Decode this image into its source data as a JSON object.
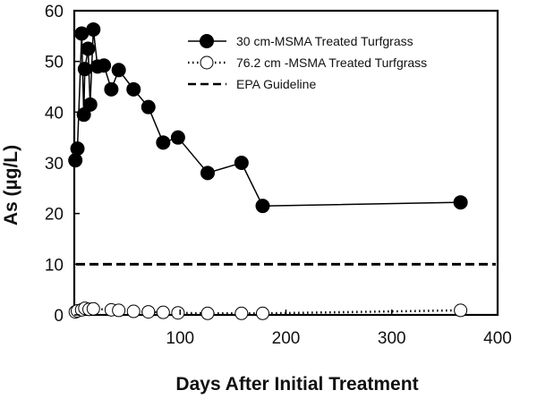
{
  "chart_data": {
    "type": "line",
    "xlabel": "Days After Initial Treatment",
    "ylabel": "As (µg/L)",
    "xlim": [
      0,
      400
    ],
    "ylim": [
      0,
      60
    ],
    "x_ticks": [
      100,
      200,
      300,
      400
    ],
    "y_ticks": [
      0,
      10,
      20,
      30,
      40,
      50,
      60
    ],
    "grid": false,
    "legend_position": "top-right",
    "series": [
      {
        "name": "30 cm-MSMA Treated Turfgrass",
        "marker": "filled-circle",
        "line": "solid",
        "color": "#000000",
        "points": [
          [
            1,
            30.5
          ],
          [
            3,
            32.8
          ],
          [
            7,
            55.5
          ],
          [
            9,
            39.5
          ],
          [
            10,
            48.5
          ],
          [
            13,
            52.5
          ],
          [
            15,
            41.5
          ],
          [
            18,
            56.3
          ],
          [
            22,
            49.0
          ],
          [
            28,
            49.2
          ],
          [
            35,
            44.5
          ],
          [
            42,
            48.3
          ],
          [
            56,
            44.5
          ],
          [
            70,
            41.0
          ],
          [
            84,
            34.0
          ],
          [
            98,
            35.0
          ],
          [
            126,
            28.0
          ],
          [
            158,
            30.0
          ],
          [
            178,
            21.5
          ],
          [
            365,
            22.2
          ]
        ]
      },
      {
        "name": "76.2 cm -MSMA Treated Turfgrass",
        "marker": "open-circle",
        "line": "dotted",
        "color": "#000000",
        "points": [
          [
            1,
            0.6
          ],
          [
            3,
            0.8
          ],
          [
            7,
            1.0
          ],
          [
            10,
            1.3
          ],
          [
            14,
            1.1
          ],
          [
            18,
            1.2
          ],
          [
            35,
            1.0
          ],
          [
            42,
            0.9
          ],
          [
            56,
            0.7
          ],
          [
            70,
            0.6
          ],
          [
            84,
            0.5
          ],
          [
            98,
            0.4
          ],
          [
            126,
            0.3
          ],
          [
            158,
            0.3
          ],
          [
            178,
            0.3
          ],
          [
            365,
            0.9
          ]
        ]
      }
    ],
    "reference_lines": [
      {
        "name": "EPA Guideline",
        "y": 10,
        "style": "dashed",
        "color": "#000000"
      }
    ]
  }
}
